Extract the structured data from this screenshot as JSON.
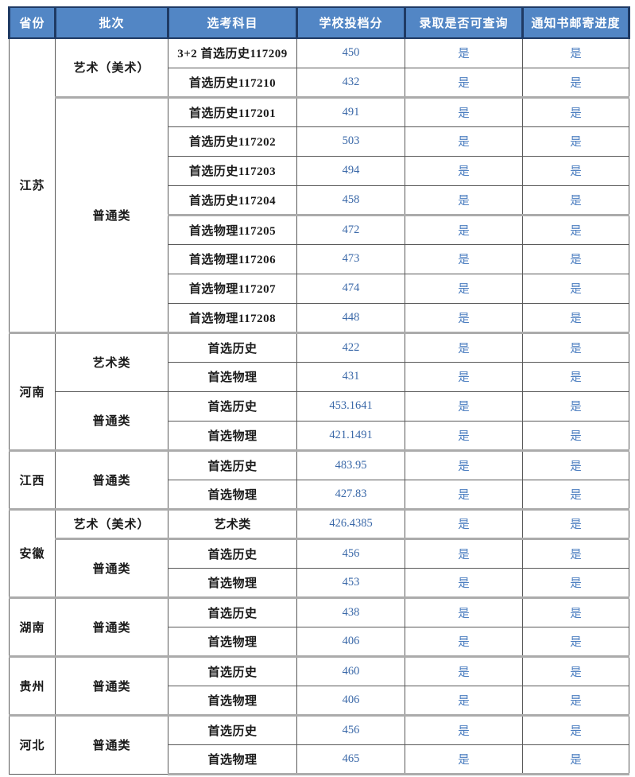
{
  "table": {
    "columns": [
      "省份",
      "批次",
      "选考科目",
      "学校投档分",
      "录取是否可查询",
      "通知书邮寄进度"
    ],
    "provinces": [
      {
        "name": "江苏",
        "groups": [
          {
            "batch": "艺术（美术）",
            "rows": [
              {
                "subject": "3+2 首选历史117209",
                "score": "450",
                "query": "是",
                "mail": "是"
              },
              {
                "subject": "首选历史117210",
                "score": "432",
                "query": "是",
                "mail": "是"
              }
            ]
          },
          {
            "batch": "普通类",
            "rows": [
              {
                "subject": "首选历史117201",
                "score": "491",
                "query": "是",
                "mail": "是"
              },
              {
                "subject": "首选历史117202",
                "score": "503",
                "query": "是",
                "mail": "是"
              },
              {
                "subject": "首选历史117203",
                "score": "494",
                "query": "是",
                "mail": "是"
              },
              {
                "subject": "首选历史117204",
                "score": "458",
                "query": "是",
                "mail": "是"
              },
              {
                "subject": "首选物理117205",
                "score": "472",
                "query": "是",
                "mail": "是"
              },
              {
                "subject": "首选物理117206",
                "score": "473",
                "query": "是",
                "mail": "是"
              },
              {
                "subject": "首选物理117207",
                "score": "474",
                "query": "是",
                "mail": "是"
              },
              {
                "subject": "首选物理117208",
                "score": "448",
                "query": "是",
                "mail": "是"
              }
            ]
          }
        ]
      },
      {
        "name": "河南",
        "groups": [
          {
            "batch": "艺术类",
            "rows": [
              {
                "subject": "首选历史",
                "score": "422",
                "query": "是",
                "mail": "是"
              },
              {
                "subject": "首选物理",
                "score": "431",
                "query": "是",
                "mail": "是"
              }
            ]
          },
          {
            "batch": "普通类",
            "rows": [
              {
                "subject": "首选历史",
                "score": "453.1641",
                "query": "是",
                "mail": "是"
              },
              {
                "subject": "首选物理",
                "score": "421.1491",
                "query": "是",
                "mail": "是"
              }
            ]
          }
        ]
      },
      {
        "name": "江西",
        "groups": [
          {
            "batch": "普通类",
            "rows": [
              {
                "subject": "首选历史",
                "score": "483.95",
                "query": "是",
                "mail": "是"
              },
              {
                "subject": "首选物理",
                "score": "427.83",
                "query": "是",
                "mail": "是"
              }
            ]
          }
        ]
      },
      {
        "name": "安徽",
        "groups": [
          {
            "batch": "艺术（美术）",
            "rows": [
              {
                "subject": "艺术类",
                "score": "426.4385",
                "query": "是",
                "mail": "是"
              }
            ]
          },
          {
            "batch": "普通类",
            "rows": [
              {
                "subject": "首选历史",
                "score": "456",
                "query": "是",
                "mail": "是"
              },
              {
                "subject": "首选物理",
                "score": "453",
                "query": "是",
                "mail": "是"
              }
            ]
          }
        ]
      },
      {
        "name": "湖南",
        "groups": [
          {
            "batch": "普通类",
            "rows": [
              {
                "subject": "首选历史",
                "score": "438",
                "query": "是",
                "mail": "是"
              },
              {
                "subject": "首选物理",
                "score": "406",
                "query": "是",
                "mail": "是"
              }
            ]
          }
        ]
      },
      {
        "name": "贵州",
        "groups": [
          {
            "batch": "普通类",
            "rows": [
              {
                "subject": "首选历史",
                "score": "460",
                "query": "是",
                "mail": "是"
              },
              {
                "subject": "首选物理",
                "score": "406",
                "query": "是",
                "mail": "是"
              }
            ]
          }
        ]
      },
      {
        "name": "河北",
        "groups": [
          {
            "batch": "普通类",
            "rows": [
              {
                "subject": "首选历史",
                "score": "456",
                "query": "是",
                "mail": "是"
              },
              {
                "subject": "首选物理",
                "score": "465",
                "query": "是",
                "mail": "是"
              }
            ]
          }
        ]
      }
    ]
  },
  "colors": {
    "header_bg": "#5286C5",
    "header_text": "#FFFFFF",
    "header_border": "#1F3A64",
    "body_text": "#1A1A1A",
    "score_text": "#3A68A8",
    "yes_text": "#4C7EC0",
    "thin_border": "#595959",
    "thick_border": "#ABABAB",
    "page_bg": "#FFFFFF"
  }
}
